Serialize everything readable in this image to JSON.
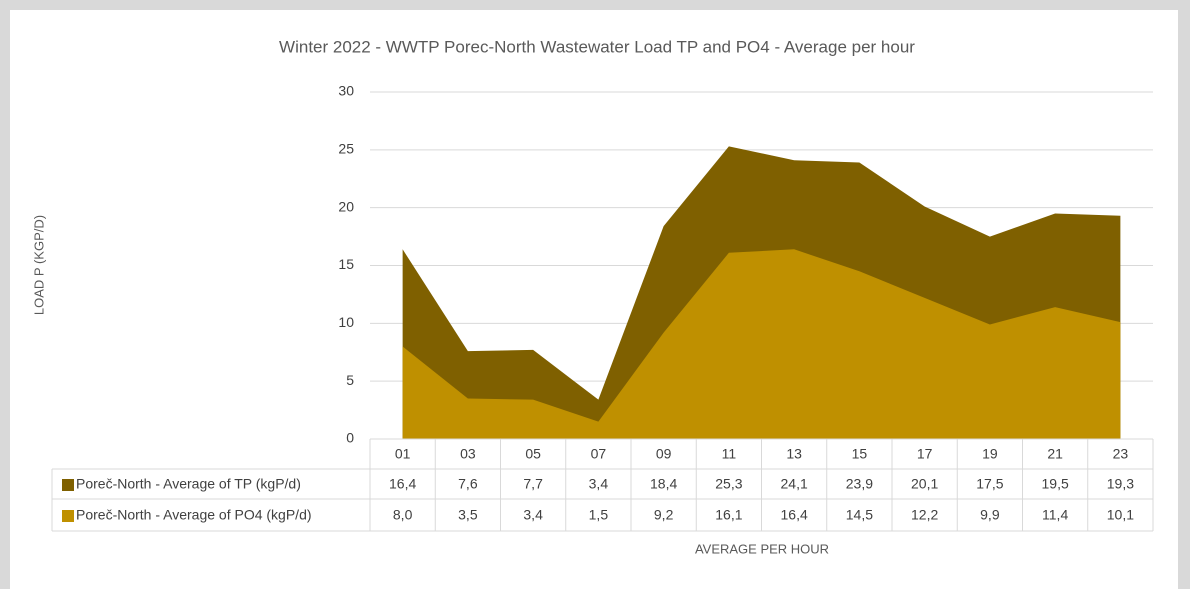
{
  "chart_data": {
    "type": "area",
    "title": "Winter 2022 - WWTP Porec-North Wastewater Load TP and PO4 - Average per hour",
    "x_label": "AVERAGE PER HOUR",
    "y_label": "LOAD P (KGP/D)",
    "categories": [
      "01",
      "03",
      "05",
      "07",
      "09",
      "11",
      "13",
      "15",
      "17",
      "19",
      "21",
      "23"
    ],
    "series": [
      {
        "name": "Poreč-North - Average of TP (kgP/d)",
        "color": "#7f6000",
        "values": [
          16.4,
          7.6,
          7.7,
          3.4,
          18.4,
          25.3,
          24.1,
          23.9,
          20.1,
          17.5,
          19.5,
          19.3
        ],
        "value_labels": [
          "16,4",
          "7,6",
          "7,7",
          "3,4",
          "18,4",
          "25,3",
          "24,1",
          "23,9",
          "20,1",
          "17,5",
          "19,5",
          "19,3"
        ]
      },
      {
        "name": "Poreč-North - Average of PO4 (kgP/d)",
        "color": "#bf9000",
        "values": [
          8.0,
          3.5,
          3.4,
          1.5,
          9.2,
          16.1,
          16.4,
          14.5,
          12.2,
          9.9,
          11.4,
          10.1
        ],
        "value_labels": [
          "8,0",
          "3,5",
          "3,4",
          "1,5",
          "9,2",
          "16,1",
          "16,4",
          "14,5",
          "12,2",
          "9,9",
          "11,4",
          "10,1"
        ]
      }
    ],
    "ylim": [
      0,
      30
    ],
    "yticks": [
      0,
      5,
      10,
      15,
      20,
      25,
      30
    ],
    "grid": true,
    "legend": "table"
  }
}
